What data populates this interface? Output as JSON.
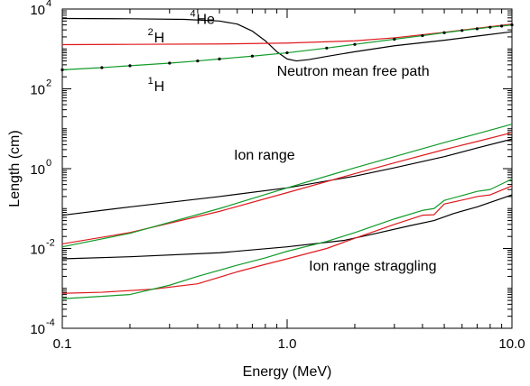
{
  "chart_data": {
    "type": "line",
    "title": "",
    "xlabel": "Energy (MeV)",
    "ylabel": "Length (cm)",
    "xscale": "log",
    "yscale": "log",
    "xlim": [
      0.1,
      10.0
    ],
    "ylim": [
      0.0001,
      10000
    ],
    "grid": false,
    "legend": "none",
    "x_ticks": [
      {
        "value": 0.1,
        "label": "0.1"
      },
      {
        "value": 1.0,
        "label": "1.0"
      },
      {
        "value": 10.0,
        "label": "10.0"
      }
    ],
    "y_ticks": [
      {
        "value": 0.0001,
        "base": "10",
        "exp": "-4"
      },
      {
        "value": 0.01,
        "base": "10",
        "exp": "-2"
      },
      {
        "value": 1,
        "base": "10",
        "exp": "0"
      },
      {
        "value": 100,
        "base": "10",
        "exp": "2"
      },
      {
        "value": 10000,
        "base": "10",
        "exp": "4"
      }
    ],
    "colors": {
      "he4": "#000000",
      "h2": "#e0191e",
      "h1": "#119b2a"
    },
    "series": [
      {
        "key": "he4-mfp",
        "color": "#000000",
        "x": [
          0.1,
          0.2,
          0.35,
          0.5,
          0.6,
          0.7,
          0.8,
          0.9,
          1.0,
          1.1,
          1.25,
          1.5,
          2.0,
          3.0,
          5.0,
          7.0,
          10.0
        ],
        "y": [
          5800,
          5700,
          5500,
          5000,
          4200,
          2800,
          1600,
          850,
          560,
          500,
          540,
          650,
          850,
          1200,
          1650,
          2100,
          2700
        ]
      },
      {
        "key": "h2-mfp",
        "color": "#e0191e",
        "x": [
          0.1,
          0.2,
          0.5,
          1.0,
          2.0,
          3.0,
          5.0,
          7.0,
          10.0
        ],
        "y": [
          1280,
          1300,
          1330,
          1400,
          1600,
          1900,
          2600,
          3300,
          4200
        ]
      },
      {
        "key": "h1-mfp",
        "color": "#119b2a",
        "markers": true,
        "x": [
          0.1,
          0.15,
          0.2,
          0.3,
          0.4,
          0.5,
          0.7,
          1.0,
          1.5,
          2.0,
          3.0,
          4.0,
          5.0,
          6.0,
          7.0,
          8.0,
          9.0,
          10.0
        ],
        "y": [
          300,
          340,
          380,
          440,
          500,
          560,
          660,
          800,
          1050,
          1300,
          1750,
          2150,
          2550,
          2900,
          3200,
          3500,
          3750,
          4000
        ]
      },
      {
        "key": "he4-range",
        "color": "#000000",
        "x": [
          0.1,
          0.2,
          0.5,
          1.0,
          2.0,
          3.0,
          5.0,
          7.0,
          10.0
        ],
        "y": [
          0.068,
          0.11,
          0.2,
          0.33,
          0.65,
          1.05,
          2.0,
          3.3,
          5.5
        ]
      },
      {
        "key": "h2-range",
        "color": "#e0191e",
        "x": [
          0.1,
          0.2,
          0.5,
          1.0,
          2.0,
          3.0,
          5.0,
          7.0,
          10.0
        ],
        "y": [
          0.013,
          0.025,
          0.085,
          0.25,
          0.75,
          1.4,
          3.0,
          4.8,
          8.0
        ]
      },
      {
        "key": "h1-range",
        "color": "#119b2a",
        "x": [
          0.1,
          0.2,
          0.5,
          1.0,
          2.0,
          3.0,
          5.0,
          7.0,
          10.0
        ],
        "y": [
          0.011,
          0.024,
          0.1,
          0.33,
          1.05,
          2.0,
          4.5,
          7.5,
          13.0
        ]
      },
      {
        "key": "he4-straggling",
        "color": "#000000",
        "x": [
          0.1,
          0.2,
          0.5,
          1.0,
          1.8,
          2.5,
          3.5,
          4.5,
          5.5,
          7.0,
          8.5,
          10.0
        ],
        "y": [
          0.0055,
          0.0062,
          0.0078,
          0.011,
          0.016,
          0.024,
          0.037,
          0.05,
          0.075,
          0.11,
          0.16,
          0.22
        ]
      },
      {
        "key": "h2-straggling",
        "color": "#e0191e",
        "x": [
          0.1,
          0.15,
          0.25,
          0.4,
          0.6,
          0.8,
          1.0,
          1.5,
          2.0,
          3.0,
          4.0,
          4.5,
          5.0,
          6.5,
          7.0,
          8.0,
          10.0
        ],
        "y": [
          0.00075,
          0.0008,
          0.00095,
          0.0013,
          0.0026,
          0.004,
          0.0055,
          0.01,
          0.018,
          0.04,
          0.068,
          0.07,
          0.13,
          0.18,
          0.2,
          0.22,
          0.37
        ]
      },
      {
        "key": "h1-straggling",
        "color": "#119b2a",
        "x": [
          0.1,
          0.2,
          0.3,
          0.4,
          0.6,
          0.8,
          1.0,
          1.5,
          2.0,
          3.0,
          4.0,
          4.5,
          5.0,
          6.5,
          7.0,
          8.0,
          10.0
        ],
        "y": [
          0.00055,
          0.0007,
          0.0012,
          0.002,
          0.0038,
          0.0058,
          0.0085,
          0.015,
          0.025,
          0.055,
          0.09,
          0.1,
          0.16,
          0.24,
          0.27,
          0.3,
          0.55
        ]
      }
    ],
    "annotations": [
      {
        "key": "he4",
        "sup": "4",
        "text": "He",
        "x": 0.37,
        "y": 4200
      },
      {
        "key": "h2",
        "sup": "2",
        "text": "H",
        "x": 0.24,
        "y": 1450
      },
      {
        "key": "h1",
        "sup": "1",
        "text": "H",
        "x": 0.24,
        "y": 88
      },
      {
        "key": "mfp",
        "text": "Neutron mean free path",
        "x": 0.9,
        "y": 210
      },
      {
        "key": "range",
        "text": "Ion range",
        "x": 0.58,
        "y": 1.7
      },
      {
        "key": "straggling",
        "text": "Ion range straggling",
        "x": 1.25,
        "y": 0.0028
      }
    ]
  }
}
